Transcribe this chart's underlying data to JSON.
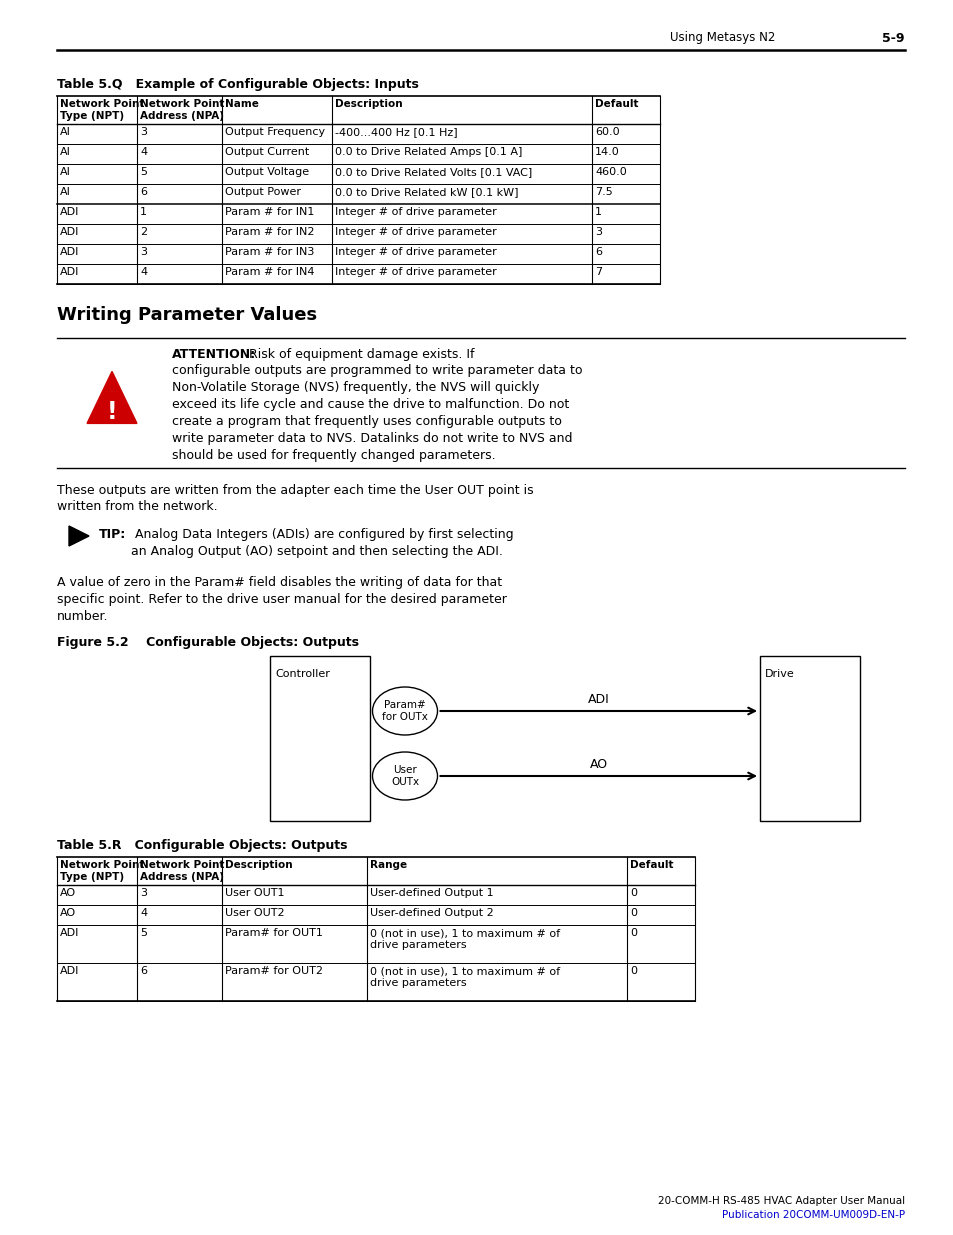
{
  "page_header_right": "Using Metasys N2",
  "page_header_page": "5-9",
  "table_q_title": "Table 5.Q   Example of Configurable Objects: Inputs",
  "table_q_headers": [
    "Network Point\nType (NPT)",
    "Network Point\nAddress (NPA)",
    "Name",
    "Description",
    "Default"
  ],
  "table_q_rows": [
    [
      "AI",
      "3",
      "Output Frequency",
      "-400...400 Hz [0.1 Hz]",
      "60.0"
    ],
    [
      "AI",
      "4",
      "Output Current",
      "0.0 to Drive Related Amps [0.1 A]",
      "14.0"
    ],
    [
      "AI",
      "5",
      "Output Voltage",
      "0.0 to Drive Related Volts [0.1 VAC]",
      "460.0"
    ],
    [
      "AI",
      "6",
      "Output Power",
      "0.0 to Drive Related kW [0.1 kW]",
      "7.5"
    ],
    [
      "ADI",
      "1",
      "Param # for IN1",
      "Integer # of drive parameter",
      "1"
    ],
    [
      "ADI",
      "2",
      "Param # for IN2",
      "Integer # of drive parameter",
      "3"
    ],
    [
      "ADI",
      "3",
      "Param # for IN3",
      "Integer # of drive parameter",
      "6"
    ],
    [
      "ADI",
      "4",
      "Param # for IN4",
      "Integer # of drive parameter",
      "7"
    ]
  ],
  "section_title": "Writing Parameter Values",
  "attention_title": "ATTENTION:",
  "attention_line1": " Risk of equipment damage exists. If",
  "attention_body": "configurable outputs are programmed to write parameter data to\nNon-Volatile Storage (NVS) frequently, the NVS will quickly\nexceed its life cycle and cause the drive to malfunction. Do not\ncreate a program that frequently uses configurable outputs to\nwrite parameter data to NVS. Datalinks do not write to NVS and\nshould be used for frequently changed parameters.",
  "para1_line1": "These outputs are written from the adapter each time the User OUT point is",
  "para1_line2": "written from the network.",
  "tip_label": "TIP:",
  "tip_body": " Analog Data Integers (ADIs) are configured by first selecting\nan Analog Output (AO) setpoint and then selecting the ADI.",
  "para2": "A value of zero in the Param# field disables the writing of data for that\nspecific point. Refer to the drive user manual for the desired parameter\nnumber.",
  "figure_title": "Figure 5.2    Configurable Objects: Outputs",
  "diag_ctrl_label": "Controller",
  "diag_ell1_label": "Param#\nfor OUTx",
  "diag_ell2_label": "User\nOUTx",
  "diag_arrow1_label": "ADI",
  "diag_arrow2_label": "AO",
  "diag_drive_label": "Drive",
  "table_r_title": "Table 5.R   Configurable Objects: Outputs",
  "table_r_headers": [
    "Network Point\nType (NPT)",
    "Network Point\nAddress (NPA)",
    "Description",
    "Range",
    "Default"
  ],
  "table_r_rows": [
    [
      "AO",
      "3",
      "User OUT1",
      "User-defined Output 1",
      "0"
    ],
    [
      "AO",
      "4",
      "User OUT2",
      "User-defined Output 2",
      "0"
    ],
    [
      "ADI",
      "5",
      "Param# for OUT1",
      "0 (not in use), 1 to maximum # of\ndrive parameters",
      "0"
    ],
    [
      "ADI",
      "6",
      "Param# for OUT2",
      "0 (not in use), 1 to maximum # of\ndrive parameters",
      "0"
    ]
  ],
  "footer_left": "20-COMM-H RS-485 HVAC Adapter User Manual",
  "footer_right": "Publication 20COMM-UM009D-EN-P",
  "bg_color": "#ffffff",
  "text_color": "#000000",
  "link_color": "#0000cc",
  "warning_color": "#cc0000"
}
